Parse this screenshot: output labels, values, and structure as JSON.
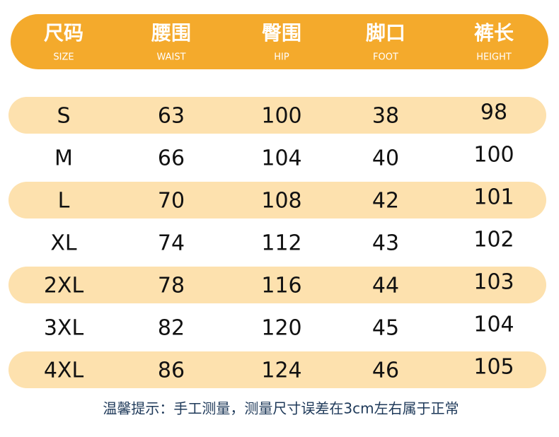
{
  "table": {
    "columns": [
      {
        "zh": "尺码",
        "en": "SIZE"
      },
      {
        "zh": "腰围",
        "en": "WAIST"
      },
      {
        "zh": "臀围",
        "en": "HIP"
      },
      {
        "zh": "脚口",
        "en": "FOOT"
      },
      {
        "zh": "裤长",
        "en": "HEIGHT"
      }
    ],
    "rows": [
      [
        "S",
        63,
        100,
        38,
        98
      ],
      [
        "M",
        66,
        104,
        40,
        100
      ],
      [
        "L",
        70,
        108,
        42,
        101
      ],
      [
        "XL",
        74,
        112,
        43,
        102
      ],
      [
        "2XL",
        78,
        116,
        44,
        103
      ],
      [
        "3XL",
        82,
        120,
        45,
        104
      ],
      [
        "4XL",
        86,
        124,
        46,
        105
      ]
    ]
  },
  "note": "温馨提示：手工测量，测量尺寸误差在3cm左右属于正常"
}
